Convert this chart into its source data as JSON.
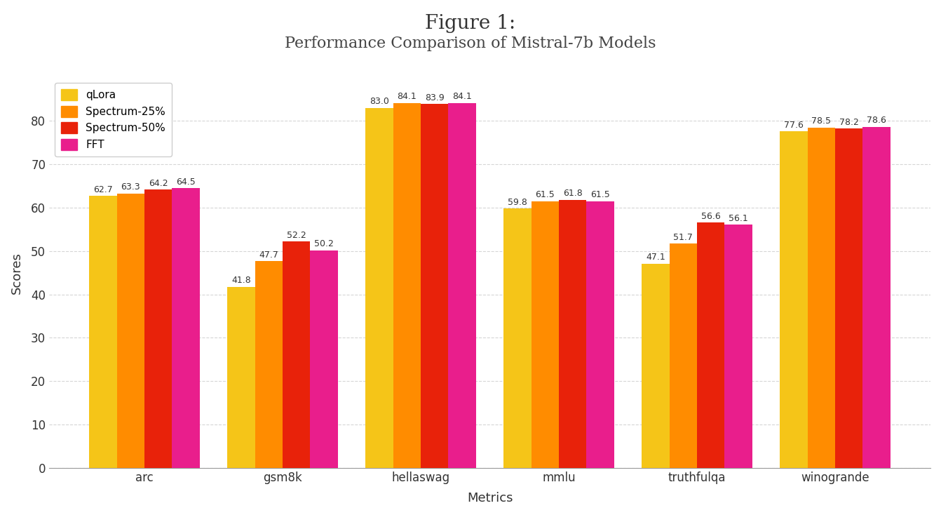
{
  "title_line1": "Figure 1:",
  "title_line2": "Performance Comparison of Mistral-7b Models",
  "xlabel": "Metrics",
  "ylabel": "Scores",
  "background_color": "#ffffff",
  "plot_bg_color": "#ffffff",
  "categories": [
    "arc",
    "gsm8k",
    "hellaswag",
    "mmlu",
    "truthfulqa",
    "winogrande"
  ],
  "series": [
    {
      "name": "qLora",
      "color": "#F5C518",
      "values": [
        62.7,
        41.8,
        83.0,
        59.8,
        47.1,
        77.6
      ]
    },
    {
      "name": "Spectrum-25%",
      "color": "#FF8C00",
      "values": [
        63.3,
        47.7,
        84.1,
        61.5,
        51.7,
        78.5
      ]
    },
    {
      "name": "Spectrum-50%",
      "color": "#E8220A",
      "values": [
        64.2,
        52.2,
        83.9,
        61.8,
        56.6,
        78.2
      ]
    },
    {
      "name": "FFT",
      "color": "#E91E8C",
      "values": [
        64.5,
        50.2,
        84.1,
        61.5,
        56.1,
        78.6
      ]
    }
  ],
  "ylim": [
    0,
    90
  ],
  "yticks": [
    0,
    10,
    20,
    30,
    40,
    50,
    60,
    70,
    80
  ],
  "bar_width": 0.2,
  "label_fontsize": 9,
  "title_fontsize1": 20,
  "title_fontsize2": 16,
  "axis_label_fontsize": 13,
  "tick_fontsize": 12,
  "legend_fontsize": 11,
  "grid_color": "#cccccc",
  "grid_linestyle": "--",
  "grid_alpha": 0.8
}
